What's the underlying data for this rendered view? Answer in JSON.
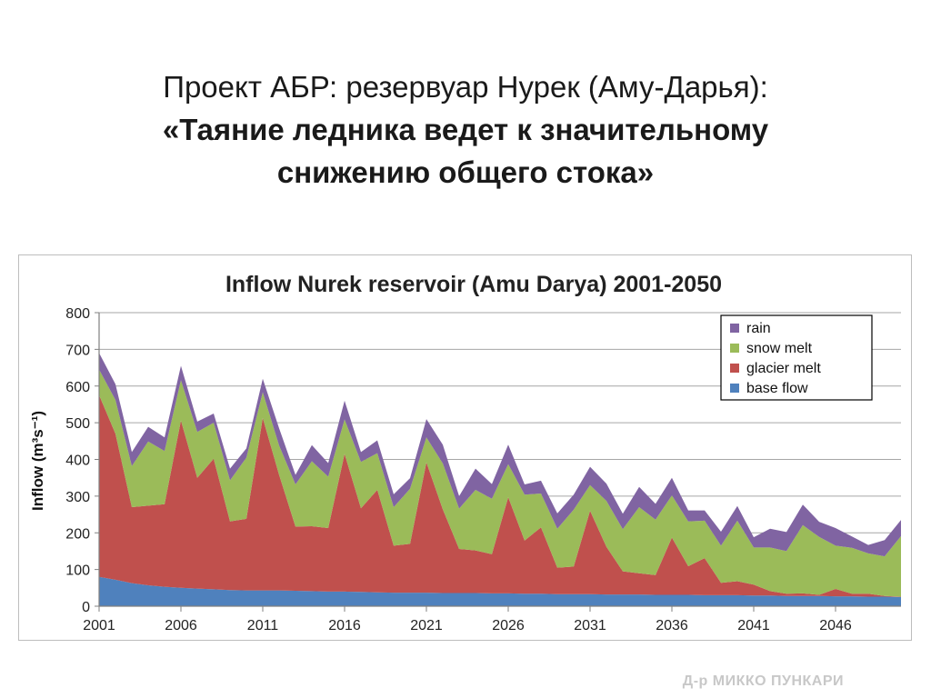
{
  "slide": {
    "title_line1": "Проект АБР: резервуар Нурек (Аму-Дарья):",
    "title_line2": "«Таяние ледника ведет к значительному",
    "title_line3": "снижению общего стока»",
    "author": "Д-р МИККО ПУНКАРИ"
  },
  "chart_data": {
    "type": "area",
    "stacked": true,
    "title": "Inflow Nurek reservoir (Amu Darya) 2001-2050",
    "xlabel": "",
    "ylabel": "Inflow (m³s⁻¹)",
    "ylim": [
      0,
      800
    ],
    "yticks": [
      0,
      100,
      200,
      300,
      400,
      500,
      600,
      700,
      800
    ],
    "xlim": [
      2001,
      2050
    ],
    "xticks": [
      2001,
      2006,
      2011,
      2016,
      2021,
      2026,
      2031,
      2036,
      2041,
      2046
    ],
    "grid": "horizontal",
    "legend_position": "top-right",
    "x": [
      2001,
      2002,
      2003,
      2004,
      2005,
      2006,
      2007,
      2008,
      2009,
      2010,
      2011,
      2012,
      2013,
      2014,
      2015,
      2016,
      2017,
      2018,
      2019,
      2020,
      2021,
      2022,
      2023,
      2024,
      2025,
      2026,
      2027,
      2028,
      2029,
      2030,
      2031,
      2032,
      2033,
      2034,
      2035,
      2036,
      2037,
      2038,
      2039,
      2040,
      2041,
      2042,
      2043,
      2044,
      2045,
      2046,
      2047,
      2048,
      2049,
      2050
    ],
    "series": [
      {
        "name": "base flow",
        "color": "#4f81bd",
        "values": [
          80,
          72,
          63,
          57,
          53,
          50,
          48,
          46,
          44,
          43,
          43,
          43,
          42,
          41,
          40,
          40,
          39,
          38,
          37,
          37,
          37,
          36,
          36,
          36,
          35,
          35,
          34,
          34,
          33,
          33,
          33,
          32,
          32,
          32,
          31,
          31,
          31,
          30,
          30,
          30,
          29,
          29,
          28,
          28,
          28,
          27,
          27,
          26,
          26,
          25
        ]
      },
      {
        "name": "glacier melt",
        "color": "#c0504d",
        "values": [
          495,
          398,
          207,
          217,
          225,
          456,
          302,
          356,
          187,
          195,
          470,
          315,
          175,
          177,
          173,
          375,
          228,
          279,
          128,
          133,
          355,
          228,
          120,
          116,
          107,
          262,
          145,
          181,
          72,
          75,
          227,
          130,
          63,
          58,
          54,
          156,
          78,
          101,
          34,
          38,
          30,
          12,
          6,
          7,
          3,
          20,
          7,
          8,
          2,
          1
        ]
      },
      {
        "name": "snow melt",
        "color": "#9bbb59",
        "values": [
          70,
          92,
          112,
          175,
          145,
          110,
          125,
          98,
          112,
          167,
          70,
          80,
          115,
          177,
          140,
          94,
          126,
          100,
          105,
          150,
          68,
          125,
          110,
          165,
          151,
          90,
          125,
          92,
          106,
          155,
          70,
          125,
          115,
          180,
          151,
          115,
          122,
          102,
          101,
          165,
          101,
          119,
          116,
          186,
          158,
          118,
          125,
          110,
          108,
          165
        ]
      },
      {
        "name": "rain",
        "color": "#8064a2",
        "values": [
          45,
          43,
          38,
          40,
          37,
          39,
          28,
          25,
          32,
          25,
          37,
          47,
          26,
          44,
          37,
          51,
          27,
          35,
          35,
          29,
          50,
          51,
          34,
          58,
          40,
          53,
          28,
          35,
          42,
          41,
          50,
          47,
          42,
          55,
          43,
          48,
          30,
          28,
          38,
          40,
          28,
          51,
          52,
          56,
          41,
          48,
          31,
          23,
          44,
          44
        ]
      }
    ]
  }
}
